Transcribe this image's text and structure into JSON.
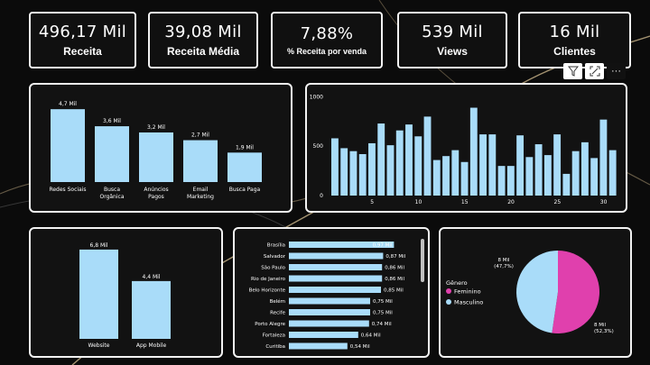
{
  "kpis": [
    {
      "value": "496,17 Mil",
      "label": "Receita"
    },
    {
      "value": "39,08 Mil",
      "label": "Receita Média"
    },
    {
      "value": "7,88%",
      "label": "% Receita por venda"
    },
    {
      "value": "539 Mil",
      "label": "Views"
    },
    {
      "value": "16 Mil",
      "label": "Clientes"
    }
  ],
  "toolbar": {
    "filter_icon": "filter-icon",
    "focus_icon": "focus-mode-icon",
    "more_label": "···"
  },
  "colors": {
    "bar": "#a9dcf9",
    "female": "#e040ad",
    "male": "#a9dcf9"
  },
  "chart_data": [
    {
      "type": "bar",
      "title": "",
      "categories": [
        "Redes Sociais",
        "Busca Orgânica",
        "Anúncios Pagos",
        "Email Marketing",
        "Busca Paga"
      ],
      "category_lines": [
        [
          "Redes Sociais"
        ],
        [
          "Busca",
          "Orgânica"
        ],
        [
          "Anúncios",
          "Pagos"
        ],
        [
          "Email",
          "Marketing"
        ],
        [
          "Busca Paga"
        ]
      ],
      "values": [
        4.7,
        3.6,
        3.2,
        2.7,
        1.9
      ],
      "labels": [
        "4,7 Mil",
        "3,6 Mil",
        "3,2 Mil",
        "2,7 Mil",
        "1,9 Mil"
      ],
      "ylim": [
        0,
        5
      ]
    },
    {
      "type": "bar",
      "title": "",
      "x": [
        1,
        2,
        3,
        4,
        5,
        6,
        7,
        8,
        9,
        10,
        11,
        12,
        13,
        14,
        15,
        16,
        17,
        18,
        19,
        20,
        21,
        22,
        23,
        24,
        25,
        26,
        27,
        28,
        29,
        30,
        31
      ],
      "values": [
        580,
        480,
        450,
        420,
        530,
        730,
        510,
        660,
        720,
        600,
        800,
        360,
        400,
        460,
        340,
        890,
        620,
        620,
        300,
        300,
        610,
        390,
        520,
        410,
        620,
        220,
        450,
        540,
        380,
        770,
        460
      ],
      "yticks": [
        0,
        500,
        1000
      ],
      "ytick_labels": [
        "0",
        "500",
        "1000"
      ],
      "xticks": [
        5,
        10,
        15,
        20,
        25,
        30
      ],
      "xtick_labels": [
        "5",
        "10",
        "15",
        "20",
        "25",
        "30"
      ],
      "ylim": [
        0,
        1050
      ]
    },
    {
      "type": "bar",
      "title": "",
      "categories": [
        "Website",
        "App Mobile"
      ],
      "values": [
        6.8,
        4.4
      ],
      "labels": [
        "6,8 Mil",
        "4,4 Mil"
      ],
      "ylim": [
        0,
        7
      ]
    },
    {
      "type": "bar",
      "orientation": "horizontal",
      "title": "",
      "categories": [
        "Brasília",
        "Salvador",
        "São Paulo",
        "Rio de Janeiro",
        "Belo Horizonte",
        "Belém",
        "Recife",
        "Porto Alegre",
        "Fortaleza",
        "Curitiba"
      ],
      "values": [
        0.97,
        0.87,
        0.86,
        0.86,
        0.85,
        0.75,
        0.75,
        0.74,
        0.64,
        0.54
      ],
      "labels": [
        "0,97 Mil",
        "0,87 Mil",
        "0,86 Mil",
        "0,86 Mil",
        "0,85 Mil",
        "0,75 Mil",
        "0,75 Mil",
        "0,74 Mil",
        "0,64 Mil",
        "0,54 Mil"
      ],
      "xlim": [
        0,
        1
      ]
    },
    {
      "type": "pie",
      "title": "",
      "legend_title": "Gênero",
      "categories": [
        "Feminino",
        "Masculino"
      ],
      "values": [
        52.3,
        47.7
      ],
      "labels": [
        "8 Mil\n(52,3%)",
        "8 Mil\n(47,7%)"
      ]
    }
  ]
}
